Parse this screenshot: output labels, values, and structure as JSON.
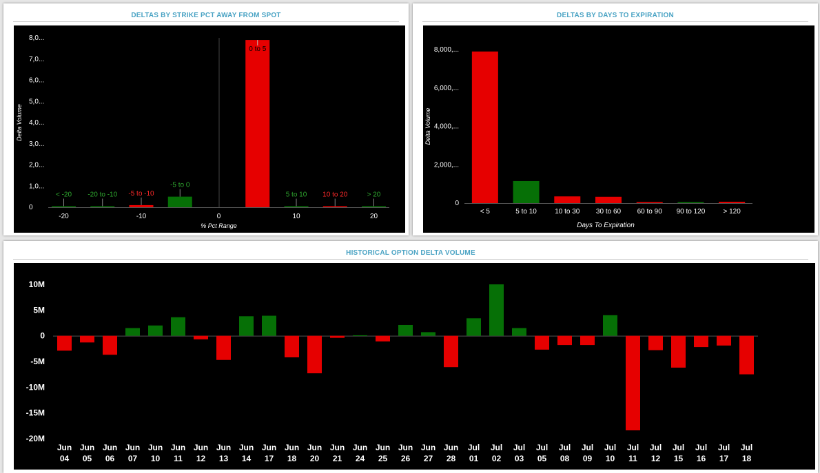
{
  "panels": {
    "strike": {
      "title": "DELTAS BY STRIKE PCT AWAY FROM SPOT"
    },
    "expiry": {
      "title": "DELTAS BY DAYS TO EXPIRATION"
    },
    "history": {
      "title": "HISTORICAL OPTION DELTA VOLUME"
    }
  },
  "colors": {
    "positive": "#067006",
    "negative": "#e60000",
    "plot_bg": "#000000",
    "title": "#4aa3c4"
  },
  "chart_data": [
    {
      "id": "strike",
      "type": "bar",
      "xlabel": "% Pct Range",
      "ylabel": "Delta Volume",
      "xlim": [
        -22,
        22
      ],
      "ylim": [
        0,
        8000000
      ],
      "xticks": [
        -20,
        -10,
        0,
        10,
        20
      ],
      "yticks": [
        {
          "v": 0,
          "label": "0"
        },
        {
          "v": 1000000,
          "label": "1,0..."
        },
        {
          "v": 2000000,
          "label": "2,0..."
        },
        {
          "v": 3000000,
          "label": "3,0..."
        },
        {
          "v": 4000000,
          "label": "4,0..."
        },
        {
          "v": 5000000,
          "label": "5,0..."
        },
        {
          "v": 6000000,
          "label": "6,0..."
        },
        {
          "v": 7000000,
          "label": "7,0..."
        },
        {
          "v": 8000000,
          "label": "8,0..."
        }
      ],
      "bars": [
        {
          "label": "< -20",
          "x": -20,
          "value": 10000,
          "sign": "positive"
        },
        {
          "label": "-20 to -10",
          "x": -15,
          "value": 20000,
          "sign": "positive"
        },
        {
          "label": "-5 to -10",
          "x": -10,
          "value": 100000,
          "sign": "negative"
        },
        {
          "label": "-5 to 0",
          "x": -5,
          "value": 500000,
          "sign": "positive"
        },
        {
          "label": "0 to 5",
          "x": 5,
          "value": 7900000,
          "sign": "negative"
        },
        {
          "label": "5 to 10",
          "x": 10,
          "value": 10000,
          "sign": "positive"
        },
        {
          "label": "10 to 20",
          "x": 15,
          "value": 20000,
          "sign": "negative"
        },
        {
          "label": "> 20",
          "x": 20,
          "value": 10000,
          "sign": "positive"
        }
      ]
    },
    {
      "id": "expiry",
      "type": "bar",
      "xlabel": "Days To Expiration",
      "ylabel": "Delta Volume",
      "ylim": [
        0,
        8000000
      ],
      "yticks": [
        {
          "v": 0,
          "label": "0"
        },
        {
          "v": 2000000,
          "label": "2,000,..."
        },
        {
          "v": 4000000,
          "label": "4,000,..."
        },
        {
          "v": 6000000,
          "label": "6,000,..."
        },
        {
          "v": 8000000,
          "label": "8,000,..."
        }
      ],
      "categories": [
        "< 5",
        "5 to 10",
        "10 to 30",
        "30 to 60",
        "60 to 90",
        "90 to 120",
        "> 120"
      ],
      "values": [
        7900000,
        1150000,
        350000,
        330000,
        20000,
        40000,
        70000
      ],
      "signs": [
        "negative",
        "positive",
        "negative",
        "negative",
        "negative",
        "positive",
        "negative"
      ]
    },
    {
      "id": "history",
      "type": "bar",
      "ylim": [
        -20000000,
        10000000
      ],
      "yticks": [
        {
          "v": 10000000,
          "label": "10M"
        },
        {
          "v": 5000000,
          "label": "5M"
        },
        {
          "v": 0,
          "label": "0"
        },
        {
          "v": -5000000,
          "label": "-5M"
        },
        {
          "v": -10000000,
          "label": "-10M"
        },
        {
          "v": -15000000,
          "label": "-15M"
        },
        {
          "v": -20000000,
          "label": "-20M"
        }
      ],
      "categories": [
        [
          "Jun",
          "04"
        ],
        [
          "Jun",
          "05"
        ],
        [
          "Jun",
          "06"
        ],
        [
          "Jun",
          "07"
        ],
        [
          "Jun",
          "10"
        ],
        [
          "Jun",
          "11"
        ],
        [
          "Jun",
          "12"
        ],
        [
          "Jun",
          "13"
        ],
        [
          "Jun",
          "14"
        ],
        [
          "Jun",
          "17"
        ],
        [
          "Jun",
          "18"
        ],
        [
          "Jun",
          "20"
        ],
        [
          "Jun",
          "21"
        ],
        [
          "Jun",
          "24"
        ],
        [
          "Jun",
          "25"
        ],
        [
          "Jun",
          "26"
        ],
        [
          "Jun",
          "27"
        ],
        [
          "Jun",
          "28"
        ],
        [
          "Jul",
          "01"
        ],
        [
          "Jul",
          "02"
        ],
        [
          "Jul",
          "03"
        ],
        [
          "Jul",
          "05"
        ],
        [
          "Jul",
          "08"
        ],
        [
          "Jul",
          "09"
        ],
        [
          "Jul",
          "10"
        ],
        [
          "Jul",
          "11"
        ],
        [
          "Jul",
          "12"
        ],
        [
          "Jul",
          "15"
        ],
        [
          "Jul",
          "16"
        ],
        [
          "Jul",
          "17"
        ],
        [
          "Jul",
          "18"
        ]
      ],
      "values": [
        -2900000,
        -1300000,
        -3700000,
        1500000,
        2000000,
        3600000,
        -700000,
        -4700000,
        3800000,
        3900000,
        -4200000,
        -7300000,
        -400000,
        100000,
        -1100000,
        2100000,
        700000,
        -6100000,
        3400000,
        10000000,
        1500000,
        -2700000,
        -1800000,
        -1800000,
        4000000,
        -18400000,
        -2800000,
        -6200000,
        -2200000,
        -1900000,
        -7500000
      ]
    }
  ]
}
